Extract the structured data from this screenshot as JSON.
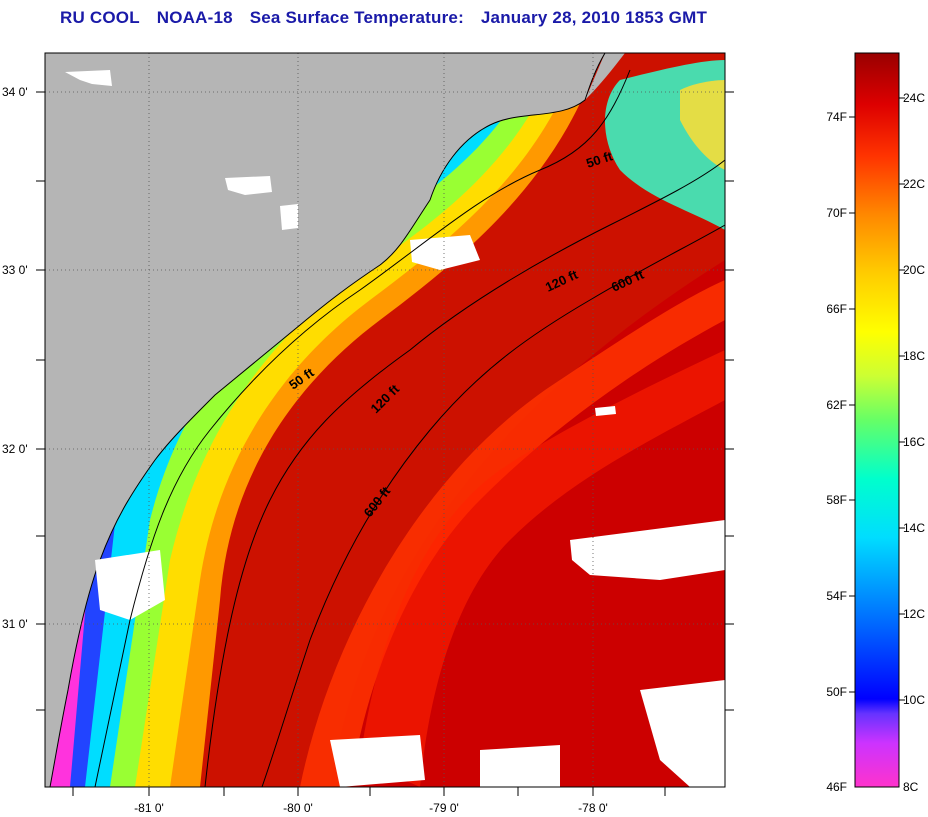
{
  "title": {
    "org": "RU COOL",
    "satellite": "NOAA-18",
    "product": "Sea Surface Temperature:",
    "date": "January 28, 2010 1853 GMT"
  },
  "map": {
    "longitude_ticks": [
      "-81 0'",
      "-80 0'",
      "-79 0'",
      "-78 0'"
    ],
    "latitude_ticks": [
      "34 0'",
      "33 0'",
      "32 0'",
      "31 0'"
    ],
    "contour_labels": [
      {
        "text": "50 ft",
        "id": "50-north"
      },
      {
        "text": "50 ft",
        "id": "50-south"
      },
      {
        "text": "120 ft",
        "id": "120-north"
      },
      {
        "text": "120 ft",
        "id": "120-south"
      },
      {
        "text": "600 ft",
        "id": "600-north"
      },
      {
        "text": "600 ft",
        "id": "600-south"
      }
    ],
    "colors": {
      "land": "#b5b5b5",
      "cloud": "#ffffff",
      "contour": "#000000"
    }
  },
  "colorbar": {
    "fahrenheit_labels": [
      "74F",
      "70F",
      "66F",
      "62F",
      "58F",
      "54F",
      "50F",
      "46F"
    ],
    "celsius_labels": [
      "24C",
      "22C",
      "20C",
      "18C",
      "16C",
      "14C",
      "12C",
      "10C",
      "8C"
    ],
    "scale_colors": [
      "#ff33cc",
      "#cc33ff",
      "#6633ff",
      "#0000ff",
      "#0066ff",
      "#00ccff",
      "#00ffcc",
      "#66ff66",
      "#ccff33",
      "#ffff00",
      "#ffcc00",
      "#ff9900",
      "#ff6600",
      "#ff3300",
      "#ee0000",
      "#cc0000",
      "#990000"
    ]
  }
}
